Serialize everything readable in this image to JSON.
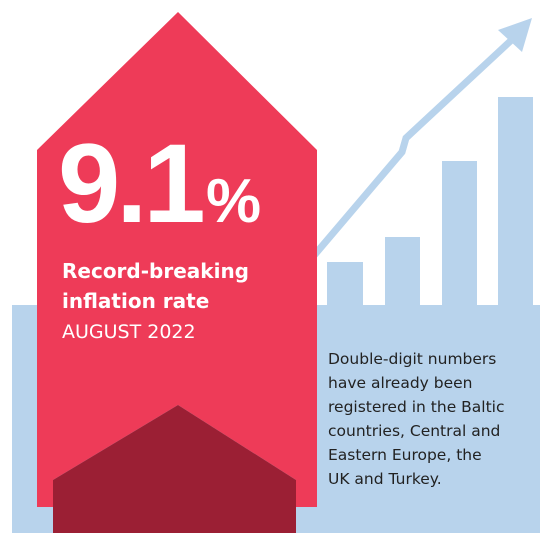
{
  "headline": {
    "number": "9.1",
    "unit": "%"
  },
  "subtitle": [
    "Record-breaking",
    "inflation rate"
  ],
  "date": "AUGUST 2022",
  "description": [
    "Double-digit numbers",
    "have already been",
    "registered in the Baltic",
    "countries, Central and",
    "Eastern Europe, the",
    "UK and Turkey."
  ]
}
